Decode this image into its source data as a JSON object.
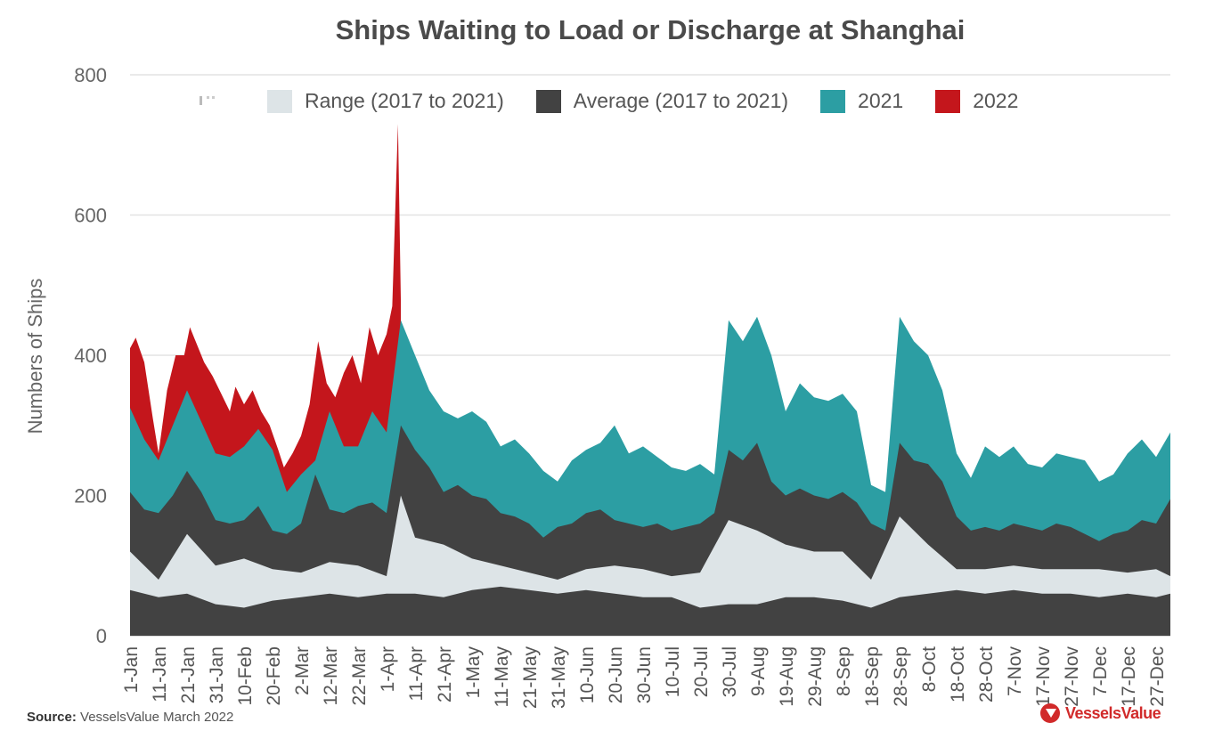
{
  "chart_data": {
    "type": "area",
    "title": "Ships Waiting to Load or Discharge at Shanghai",
    "ylabel": "Numbers of Ships",
    "xlabel": "",
    "ylim": [
      0,
      800
    ],
    "yticks": [
      0,
      200,
      400,
      600,
      800
    ],
    "xticks": [
      "1-Jan",
      "11-Jan",
      "21-Jan",
      "31-Jan",
      "10-Feb",
      "20-Feb",
      "2-Mar",
      "12-Mar",
      "22-Mar",
      "1-Apr",
      "11-Apr",
      "21-Apr",
      "1-May",
      "11-May",
      "21-May",
      "31-May",
      "10-Jun",
      "20-Jun",
      "30-Jun",
      "10-Jul",
      "20-Jul",
      "30-Jul",
      "9-Aug",
      "19-Aug",
      "29-Aug",
      "8-Sep",
      "18-Sep",
      "28-Sep",
      "8-Oct",
      "18-Oct",
      "28-Oct",
      "7-Nov",
      "17-Nov",
      "27-Nov",
      "7-Dec",
      "17-Dec",
      "27-Dec"
    ],
    "x_day_range": [
      0,
      365
    ],
    "legend_position": "top",
    "series": [
      {
        "name": "Range (2017 to 2021)",
        "kind": "band",
        "color": "#dde4e7",
        "points_low": [
          [
            0,
            65
          ],
          [
            10,
            55
          ],
          [
            20,
            60
          ],
          [
            30,
            45
          ],
          [
            40,
            40
          ],
          [
            50,
            50
          ],
          [
            60,
            55
          ],
          [
            70,
            60
          ],
          [
            80,
            55
          ],
          [
            90,
            60
          ],
          [
            100,
            60
          ],
          [
            110,
            55
          ],
          [
            120,
            65
          ],
          [
            130,
            70
          ],
          [
            140,
            65
          ],
          [
            150,
            60
          ],
          [
            160,
            65
          ],
          [
            170,
            60
          ],
          [
            180,
            55
          ],
          [
            190,
            55
          ],
          [
            200,
            40
          ],
          [
            210,
            45
          ],
          [
            220,
            45
          ],
          [
            230,
            55
          ],
          [
            240,
            55
          ],
          [
            250,
            50
          ],
          [
            260,
            40
          ],
          [
            270,
            55
          ],
          [
            280,
            60
          ],
          [
            290,
            65
          ],
          [
            300,
            60
          ],
          [
            310,
            65
          ],
          [
            320,
            60
          ],
          [
            330,
            60
          ],
          [
            340,
            55
          ],
          [
            350,
            60
          ],
          [
            360,
            55
          ],
          [
            365,
            60
          ]
        ],
        "points_high": [
          [
            0,
            120
          ],
          [
            10,
            80
          ],
          [
            20,
            145
          ],
          [
            30,
            100
          ],
          [
            40,
            110
          ],
          [
            50,
            95
          ],
          [
            60,
            90
          ],
          [
            70,
            105
          ],
          [
            80,
            100
          ],
          [
            90,
            85
          ],
          [
            95,
            200
          ],
          [
            100,
            140
          ],
          [
            110,
            130
          ],
          [
            120,
            110
          ],
          [
            130,
            100
          ],
          [
            140,
            90
          ],
          [
            150,
            80
          ],
          [
            160,
            95
          ],
          [
            170,
            100
          ],
          [
            180,
            95
          ],
          [
            190,
            85
          ],
          [
            200,
            90
          ],
          [
            210,
            165
          ],
          [
            220,
            150
          ],
          [
            230,
            130
          ],
          [
            240,
            120
          ],
          [
            250,
            120
          ],
          [
            260,
            80
          ],
          [
            270,
            170
          ],
          [
            280,
            130
          ],
          [
            290,
            95
          ],
          [
            300,
            95
          ],
          [
            310,
            100
          ],
          [
            320,
            95
          ],
          [
            330,
            95
          ],
          [
            340,
            95
          ],
          [
            350,
            90
          ],
          [
            360,
            95
          ],
          [
            365,
            85
          ]
        ]
      },
      {
        "name": "Average (2017 to 2021)",
        "kind": "line-area",
        "color": "#424242",
        "points": [
          [
            0,
            205
          ],
          [
            5,
            180
          ],
          [
            10,
            175
          ],
          [
            15,
            200
          ],
          [
            20,
            235
          ],
          [
            25,
            205
          ],
          [
            30,
            165
          ],
          [
            35,
            160
          ],
          [
            40,
            165
          ],
          [
            45,
            185
          ],
          [
            50,
            150
          ],
          [
            55,
            145
          ],
          [
            60,
            160
          ],
          [
            65,
            230
          ],
          [
            70,
            180
          ],
          [
            75,
            175
          ],
          [
            80,
            185
          ],
          [
            85,
            190
          ],
          [
            90,
            175
          ],
          [
            95,
            300
          ],
          [
            100,
            265
          ],
          [
            105,
            240
          ],
          [
            110,
            205
          ],
          [
            115,
            215
          ],
          [
            120,
            200
          ],
          [
            125,
            195
          ],
          [
            130,
            175
          ],
          [
            135,
            170
          ],
          [
            140,
            160
          ],
          [
            145,
            140
          ],
          [
            150,
            155
          ],
          [
            155,
            160
          ],
          [
            160,
            175
          ],
          [
            165,
            180
          ],
          [
            170,
            165
          ],
          [
            175,
            160
          ],
          [
            180,
            155
          ],
          [
            185,
            160
          ],
          [
            190,
            150
          ],
          [
            195,
            155
          ],
          [
            200,
            160
          ],
          [
            205,
            175
          ],
          [
            210,
            265
          ],
          [
            215,
            250
          ],
          [
            220,
            275
          ],
          [
            225,
            220
          ],
          [
            230,
            200
          ],
          [
            235,
            210
          ],
          [
            240,
            200
          ],
          [
            245,
            195
          ],
          [
            250,
            205
          ],
          [
            255,
            190
          ],
          [
            260,
            160
          ],
          [
            265,
            150
          ],
          [
            270,
            275
          ],
          [
            275,
            250
          ],
          [
            280,
            245
          ],
          [
            285,
            220
          ],
          [
            290,
            170
          ],
          [
            295,
            150
          ],
          [
            300,
            155
          ],
          [
            305,
            150
          ],
          [
            310,
            160
          ],
          [
            315,
            155
          ],
          [
            320,
            150
          ],
          [
            325,
            160
          ],
          [
            330,
            155
          ],
          [
            335,
            145
          ],
          [
            340,
            135
          ],
          [
            345,
            145
          ],
          [
            350,
            150
          ],
          [
            355,
            165
          ],
          [
            360,
            160
          ],
          [
            365,
            195
          ]
        ]
      },
      {
        "name": "2021",
        "kind": "line-area",
        "color": "#2c9ea3",
        "points": [
          [
            0,
            325
          ],
          [
            5,
            280
          ],
          [
            10,
            250
          ],
          [
            15,
            300
          ],
          [
            20,
            350
          ],
          [
            25,
            305
          ],
          [
            30,
            260
          ],
          [
            35,
            255
          ],
          [
            40,
            270
          ],
          [
            45,
            295
          ],
          [
            50,
            265
          ],
          [
            55,
            205
          ],
          [
            60,
            230
          ],
          [
            65,
            250
          ],
          [
            70,
            320
          ],
          [
            75,
            270
          ],
          [
            80,
            270
          ],
          [
            85,
            320
          ],
          [
            90,
            290
          ],
          [
            95,
            450
          ],
          [
            100,
            400
          ],
          [
            105,
            350
          ],
          [
            110,
            320
          ],
          [
            115,
            310
          ],
          [
            120,
            320
          ],
          [
            125,
            305
          ],
          [
            130,
            270
          ],
          [
            135,
            280
          ],
          [
            140,
            260
          ],
          [
            145,
            235
          ],
          [
            150,
            220
          ],
          [
            155,
            250
          ],
          [
            160,
            265
          ],
          [
            165,
            275
          ],
          [
            170,
            300
          ],
          [
            175,
            260
          ],
          [
            180,
            270
          ],
          [
            185,
            255
          ],
          [
            190,
            240
          ],
          [
            195,
            235
          ],
          [
            200,
            245
          ],
          [
            205,
            230
          ],
          [
            210,
            450
          ],
          [
            215,
            420
          ],
          [
            220,
            455
          ],
          [
            225,
            400
          ],
          [
            230,
            320
          ],
          [
            235,
            360
          ],
          [
            240,
            340
          ],
          [
            245,
            335
          ],
          [
            250,
            345
          ],
          [
            255,
            320
          ],
          [
            260,
            215
          ],
          [
            265,
            205
          ],
          [
            270,
            455
          ],
          [
            275,
            420
          ],
          [
            280,
            400
          ],
          [
            285,
            350
          ],
          [
            290,
            260
          ],
          [
            295,
            225
          ],
          [
            300,
            270
          ],
          [
            305,
            255
          ],
          [
            310,
            270
          ],
          [
            315,
            245
          ],
          [
            320,
            240
          ],
          [
            325,
            260
          ],
          [
            330,
            255
          ],
          [
            335,
            250
          ],
          [
            340,
            220
          ],
          [
            345,
            230
          ],
          [
            350,
            260
          ],
          [
            355,
            280
          ],
          [
            360,
            255
          ],
          [
            365,
            290
          ]
        ]
      },
      {
        "name": "2022",
        "kind": "line-area",
        "color": "#c4161c",
        "points": [
          [
            0,
            410
          ],
          [
            2,
            425
          ],
          [
            5,
            390
          ],
          [
            8,
            310
          ],
          [
            10,
            260
          ],
          [
            13,
            350
          ],
          [
            16,
            400
          ],
          [
            19,
            400
          ],
          [
            21,
            440
          ],
          [
            23,
            420
          ],
          [
            26,
            390
          ],
          [
            29,
            370
          ],
          [
            32,
            345
          ],
          [
            35,
            320
          ],
          [
            37,
            355
          ],
          [
            40,
            330
          ],
          [
            43,
            350
          ],
          [
            46,
            320
          ],
          [
            49,
            300
          ],
          [
            52,
            265
          ],
          [
            54,
            240
          ],
          [
            57,
            260
          ],
          [
            60,
            285
          ],
          [
            63,
            330
          ],
          [
            66,
            420
          ],
          [
            69,
            360
          ],
          [
            72,
            340
          ],
          [
            75,
            375
          ],
          [
            78,
            400
          ],
          [
            81,
            360
          ],
          [
            84,
            440
          ],
          [
            87,
            400
          ],
          [
            90,
            430
          ],
          [
            92,
            470
          ],
          [
            94,
            730
          ],
          [
            95,
            480
          ]
        ]
      }
    ]
  },
  "legend": {
    "range_label": "Range (2017 to 2021)",
    "average_label": "Average (2017 to 2021)",
    "y2021_label": "2021",
    "y2022_label": "2022"
  },
  "source": {
    "prefix": "Source:",
    "text": "VesselsValue March 2022"
  },
  "brand": "VesselsValue"
}
